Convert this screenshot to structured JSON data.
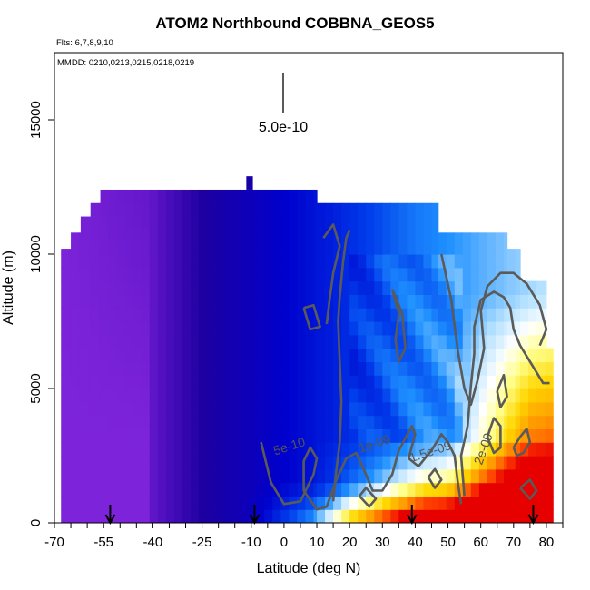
{
  "chart_data": {
    "type": "heatmap",
    "title": "ATOM2 Northbound COBBNA_GEOS5",
    "subtitle": "Flts: 6,7,8,9,10",
    "mmdd": "MMDD: 0210,0213,0215,0218,0219",
    "xlabel": "Latitude (deg N)",
    "ylabel": "Altitude (m)",
    "xlim": [
      -70,
      85
    ],
    "ylim": [
      0,
      17500
    ],
    "x_ticks": [
      -70,
      -55,
      -40,
      -25,
      -10,
      0,
      10,
      20,
      30,
      40,
      50,
      60,
      70,
      80
    ],
    "y_ticks": [
      0,
      5000,
      10000,
      15000
    ],
    "scale_bar_label": "5.0e-10",
    "contour_labels": [
      {
        "text": "5e-10",
        "x": 2,
        "y": 2700
      },
      {
        "text": "1e-09",
        "x": 28,
        "y": 2800
      },
      {
        "text": "1.5e-09",
        "x": 45,
        "y": 2500
      },
      {
        "text": "2e-09",
        "x": 62,
        "y": 2700
      }
    ],
    "profile_markers_lat": [
      -53,
      -9,
      39,
      76
    ],
    "columns": [
      {
        "lat_min": -68,
        "lat_max": -65,
        "top": 10200
      },
      {
        "lat_min": -65,
        "lat_max": -62,
        "top": 10800
      },
      {
        "lat_min": -62,
        "lat_max": -59,
        "top": 11400
      },
      {
        "lat_min": -59,
        "lat_max": -56,
        "top": 11900
      },
      {
        "lat_min": -56,
        "lat_max": 10,
        "top": 12400
      },
      {
        "lat_min": 10,
        "lat_max": 47,
        "top": 11900
      },
      {
        "lat_min": 47,
        "lat_max": 68,
        "top": 10800
      },
      {
        "lat_min": 68,
        "lat_max": 72,
        "top": 10200
      },
      {
        "lat_min": 72,
        "lat_max": 80,
        "top": 9000
      },
      {
        "lat_min": 80,
        "lat_max": 82,
        "top": 6500
      }
    ]
  }
}
